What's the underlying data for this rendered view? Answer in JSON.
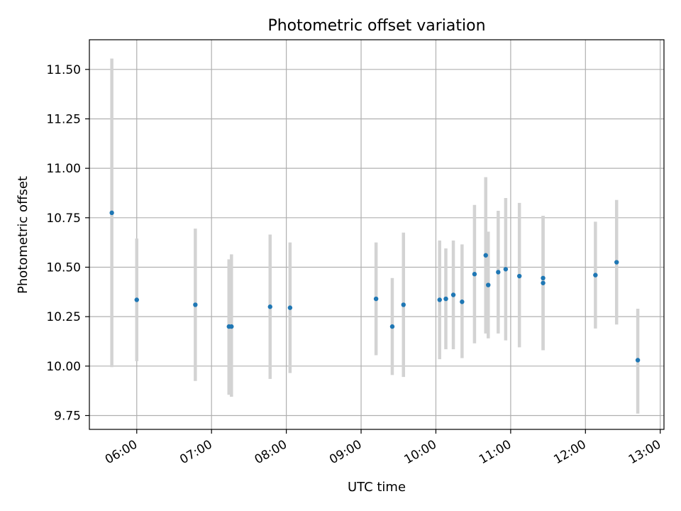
{
  "chart_data": {
    "type": "scatter",
    "title": "Photometric offset variation",
    "xlabel": "UTC time",
    "ylabel": "Photometric offset",
    "grid": true,
    "x_tick_labels": [
      "06:00",
      "07:00",
      "08:00",
      "09:00",
      "10:00",
      "11:00",
      "12:00",
      "13:00"
    ],
    "y_tick_labels": [
      "9.75",
      "10.00",
      "10.25",
      "10.50",
      "10.75",
      "11.00",
      "11.25",
      "11.50"
    ],
    "x_ticks": [
      "06:00",
      "07:00",
      "08:00",
      "09:00",
      "10:00",
      "11:00",
      "12:00",
      "13:00"
    ],
    "y_ticks": [
      9.75,
      10.0,
      10.25,
      10.5,
      10.75,
      11.0,
      11.25,
      11.5
    ],
    "xlim": [
      "05:22",
      "13:03"
    ],
    "ylim": [
      9.68,
      11.65
    ],
    "points": [
      {
        "x": "05:40",
        "y": 10.775,
        "ylow": 9.995,
        "yhigh": 11.555
      },
      {
        "x": "06:00",
        "y": 10.335,
        "ylow": 10.025,
        "yhigh": 10.645
      },
      {
        "x": "06:47",
        "y": 10.31,
        "ylow": 9.925,
        "yhigh": 10.695
      },
      {
        "x": "07:14",
        "y": 10.2,
        "ylow": 9.855,
        "yhigh": 10.54
      },
      {
        "x": "07:16",
        "y": 10.2,
        "ylow": 9.845,
        "yhigh": 10.565
      },
      {
        "x": "07:47",
        "y": 10.3,
        "ylow": 9.935,
        "yhigh": 10.665
      },
      {
        "x": "08:03",
        "y": 10.295,
        "ylow": 9.965,
        "yhigh": 10.625
      },
      {
        "x": "09:12",
        "y": 10.34,
        "ylow": 10.055,
        "yhigh": 10.625
      },
      {
        "x": "09:25",
        "y": 10.2,
        "ylow": 9.955,
        "yhigh": 10.445
      },
      {
        "x": "09:34",
        "y": 10.31,
        "ylow": 9.945,
        "yhigh": 10.675
      },
      {
        "x": "10:03",
        "y": 10.335,
        "ylow": 10.035,
        "yhigh": 10.635
      },
      {
        "x": "10:08",
        "y": 10.34,
        "ylow": 10.085,
        "yhigh": 10.595
      },
      {
        "x": "10:14",
        "y": 10.36,
        "ylow": 10.085,
        "yhigh": 10.635
      },
      {
        "x": "10:21",
        "y": 10.325,
        "ylow": 10.04,
        "yhigh": 10.615
      },
      {
        "x": "10:31",
        "y": 10.465,
        "ylow": 10.115,
        "yhigh": 10.815
      },
      {
        "x": "10:40",
        "y": 10.56,
        "ylow": 10.165,
        "yhigh": 10.955
      },
      {
        "x": "10:42",
        "y": 10.41,
        "ylow": 10.14,
        "yhigh": 10.68
      },
      {
        "x": "10:50",
        "y": 10.475,
        "ylow": 10.165,
        "yhigh": 10.785
      },
      {
        "x": "10:56",
        "y": 10.49,
        "ylow": 10.13,
        "yhigh": 10.85
      },
      {
        "x": "11:07",
        "y": 10.455,
        "ylow": 10.095,
        "yhigh": 10.825
      },
      {
        "x": "11:26",
        "y": 10.445,
        "ylow": 10.08,
        "yhigh": 10.76
      },
      {
        "x": "11:26",
        "y": 10.42,
        "ylow": 10.08,
        "yhigh": 10.76
      },
      {
        "x": "12:08",
        "y": 10.46,
        "ylow": 10.19,
        "yhigh": 10.73
      },
      {
        "x": "12:25",
        "y": 10.525,
        "ylow": 10.21,
        "yhigh": 10.84
      },
      {
        "x": "12:42",
        "y": 10.03,
        "ylow": 9.76,
        "yhigh": 10.29
      }
    ],
    "colors": {
      "marker": "#1f77b4",
      "errorbar": "#d3d3d3",
      "grid": "#b0b0b0",
      "axes": "#000000"
    }
  }
}
